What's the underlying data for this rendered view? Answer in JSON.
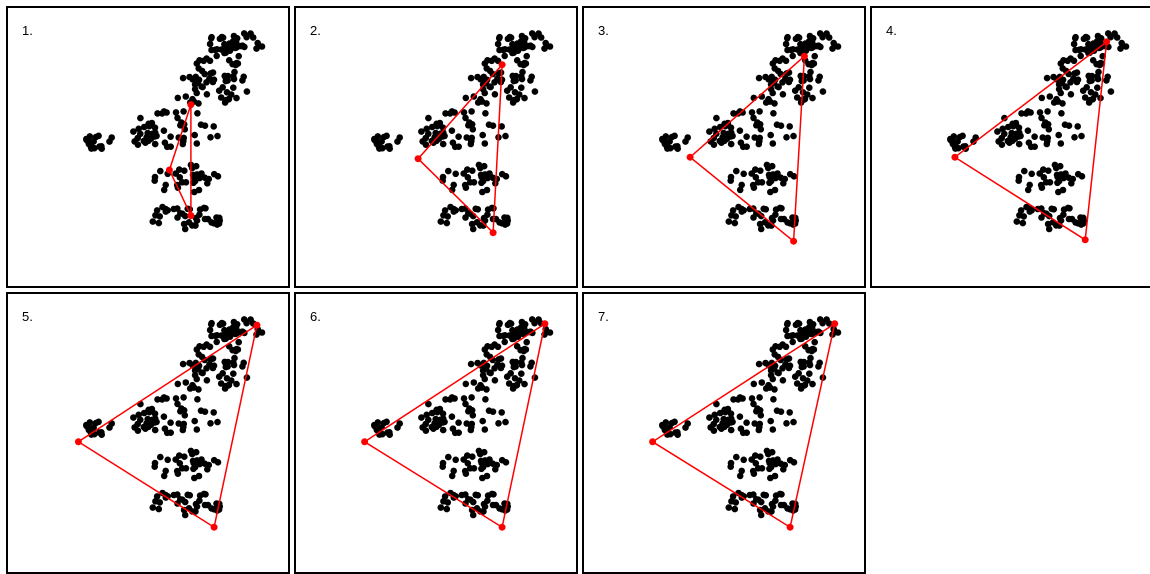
{
  "figure": {
    "panels": [
      {
        "label": "1.",
        "triangle": [
          [
            10.0,
            14.2
          ],
          [
            8.8,
            9.6
          ],
          [
            10.0,
            6.4
          ]
        ]
      },
      {
        "label": "2.",
        "triangle": [
          [
            11.3,
            17.0
          ],
          [
            6.6,
            10.4
          ],
          [
            10.8,
            5.2
          ]
        ]
      },
      {
        "label": "3.",
        "triangle": [
          [
            12.1,
            17.6
          ],
          [
            5.7,
            10.5
          ],
          [
            11.5,
            4.6
          ]
        ]
      },
      {
        "label": "4.",
        "triangle": [
          [
            12.9,
            18.6
          ],
          [
            4.4,
            10.5
          ],
          [
            11.7,
            4.7
          ]
        ]
      },
      {
        "label": "5.",
        "triangle": [
          [
            13.7,
            18.8
          ],
          [
            3.7,
            10.6
          ],
          [
            11.3,
            4.6
          ]
        ]
      },
      {
        "label": "6.",
        "triangle": [
          [
            13.7,
            18.9
          ],
          [
            3.6,
            10.6
          ],
          [
            11.3,
            4.6
          ]
        ]
      },
      {
        "label": "7.",
        "triangle": [
          [
            13.8,
            18.9
          ],
          [
            3.6,
            10.6
          ],
          [
            11.3,
            4.6
          ]
        ]
      }
    ],
    "point_color": "#000000",
    "triangle_color": "#ff0000",
    "x_range": [
      2.0,
      16.0
    ],
    "y_range": [
      3.0,
      20.0
    ]
  }
}
